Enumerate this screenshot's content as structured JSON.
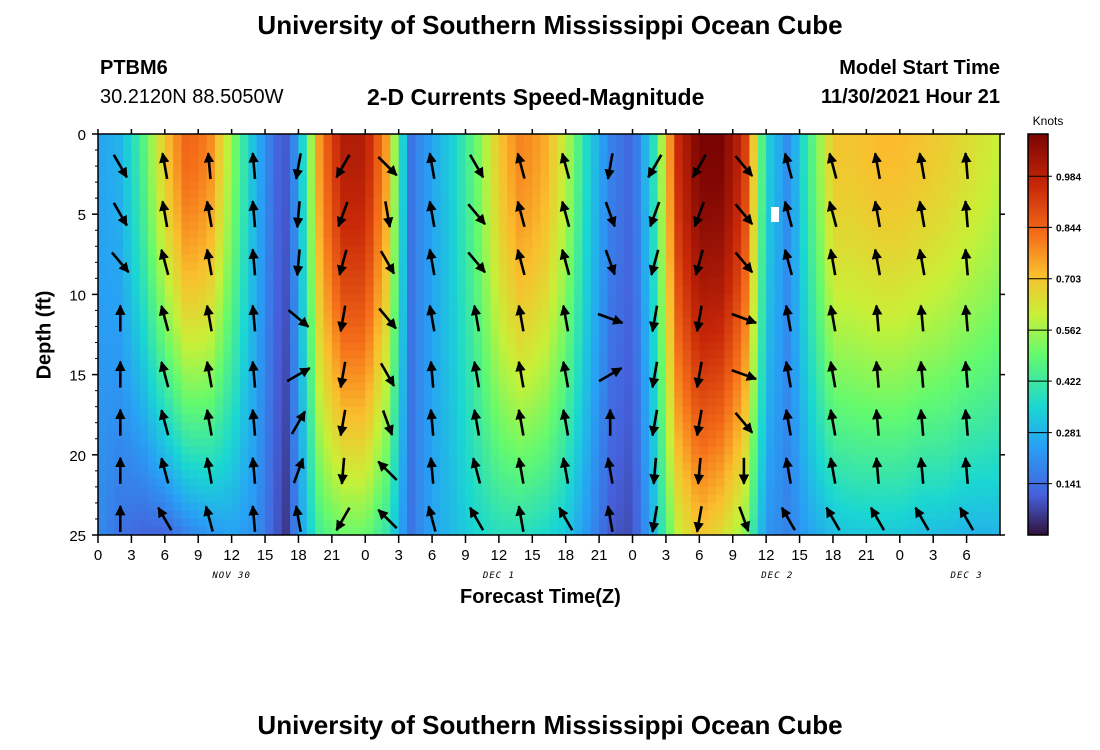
{
  "page": {
    "title_top": "University of Southern Mississippi Ocean Cube",
    "title_bottom": "University of Southern Mississippi Ocean Cube",
    "station_id": "PTBM6",
    "station_coords": "30.2120N  88.5050W",
    "plot_title": "2-D Currents Speed-Magnitude",
    "model_start_label": "Model Start Time",
    "model_start_value": "11/30/2021 Hour 21"
  },
  "chart_data": {
    "type": "heatmap",
    "title": "2-D Currents Speed-Magnitude",
    "xlabel": "Forecast Time(Z)",
    "ylabel": "Depth (ft)",
    "ylim": [
      0,
      25
    ],
    "y_ticks": [
      "0",
      "5",
      "10",
      "15",
      "20",
      "25"
    ],
    "x_range_hours": [
      0,
      81
    ],
    "x_ticks": [
      "0",
      "3",
      "6",
      "9",
      "12",
      "15",
      "18",
      "21",
      "0",
      "3",
      "6",
      "9",
      "12",
      "15",
      "18",
      "21",
      "0",
      "3",
      "6",
      "9",
      "12",
      "15",
      "18",
      "21",
      "0",
      "3",
      "6"
    ],
    "date_labels": [
      {
        "label": "NOV 30",
        "hour": 12
      },
      {
        "label": "DEC 1",
        "hour": 36
      },
      {
        "label": "DEC 2",
        "hour": 61
      },
      {
        "label": "DEC 3",
        "hour": 78
      }
    ],
    "colorbar": {
      "unit": "Knots",
      "min": 0.0,
      "max": 1.1,
      "ticks": [
        "0.984",
        "0.844",
        "0.703",
        "0.562",
        "0.422",
        "0.281",
        "0.141"
      ],
      "tick_values": [
        0.984,
        0.844,
        0.703,
        0.562,
        0.422,
        0.281,
        0.141
      ]
    },
    "speed_profile": {
      "hours": [
        0,
        2,
        4,
        6,
        8,
        10,
        12,
        14,
        16,
        17,
        18,
        20,
        22,
        24,
        26,
        28,
        30,
        32,
        34,
        36,
        38,
        40,
        42,
        44,
        46,
        48,
        50,
        52,
        54,
        56,
        58,
        60,
        62,
        64,
        66,
        68,
        70,
        72,
        74,
        76,
        78,
        80,
        81
      ],
      "surface_speed": [
        0.25,
        0.28,
        0.45,
        0.7,
        0.85,
        0.8,
        0.55,
        0.3,
        0.12,
        0.1,
        0.25,
        0.8,
        1.0,
        1.0,
        0.75,
        0.15,
        0.25,
        0.35,
        0.5,
        0.7,
        0.8,
        0.75,
        0.6,
        0.35,
        0.18,
        0.12,
        0.4,
        0.95,
        1.1,
        1.1,
        0.95,
        0.35,
        0.2,
        0.45,
        0.7,
        0.7,
        0.72,
        0.72,
        0.7,
        0.68,
        0.65,
        0.62,
        0.6
      ],
      "bottom_speed": [
        0.2,
        0.15,
        0.12,
        0.12,
        0.18,
        0.22,
        0.25,
        0.22,
        0.1,
        0.05,
        0.22,
        0.45,
        0.5,
        0.5,
        0.4,
        0.15,
        0.25,
        0.3,
        0.35,
        0.38,
        0.38,
        0.36,
        0.32,
        0.22,
        0.1,
        0.08,
        0.3,
        0.6,
        0.7,
        0.65,
        0.55,
        0.22,
        0.18,
        0.25,
        0.3,
        0.32,
        0.32,
        0.32,
        0.3,
        0.3,
        0.28,
        0.28,
        0.28
      ]
    },
    "vector_hours": [
      2,
      6,
      10,
      14,
      18,
      22,
      26,
      30,
      34,
      38,
      42,
      46,
      50,
      54,
      58,
      62,
      66,
      70,
      74,
      78
    ],
    "vector_depths": [
      2,
      5,
      8,
      11.5,
      15,
      18,
      21,
      24
    ],
    "vector_angles_deg": [
      [
        150,
        150,
        140,
        0,
        0,
        0,
        0,
        0
      ],
      [
        -10,
        -10,
        -15,
        -15,
        -15,
        -15,
        -15,
        -30
      ],
      [
        -5,
        -10,
        -10,
        -10,
        -10,
        -10,
        -10,
        -15
      ],
      [
        -5,
        -5,
        -5,
        -5,
        -5,
        -5,
        -5,
        -5
      ],
      [
        -170,
        -175,
        -175,
        130,
        60,
        30,
        20,
        -10
      ],
      [
        -150,
        -160,
        -165,
        -170,
        -170,
        -170,
        -175,
        -150
      ],
      [
        135,
        170,
        150,
        140,
        150,
        160,
        -45,
        -45
      ],
      [
        -10,
        -10,
        -10,
        -10,
        -5,
        -5,
        -5,
        -15
      ],
      [
        150,
        140,
        140,
        -10,
        -10,
        -10,
        -15,
        -30
      ],
      [
        -15,
        -15,
        -15,
        -10,
        -10,
        -10,
        -10,
        -10
      ],
      [
        -15,
        -15,
        -15,
        -10,
        -10,
        -10,
        -10,
        -30
      ],
      [
        -170,
        160,
        160,
        110,
        60,
        0,
        -10,
        -10
      ],
      [
        -150,
        -160,
        -165,
        -170,
        -170,
        -170,
        -175,
        -170
      ],
      [
        -150,
        -160,
        -165,
        -170,
        -170,
        -170,
        -175,
        -170
      ],
      [
        140,
        140,
        140,
        110,
        110,
        140,
        180,
        160
      ],
      [
        -15,
        -15,
        -15,
        -10,
        -10,
        -10,
        -10,
        -30
      ],
      [
        -15,
        -15,
        -10,
        -10,
        -10,
        -10,
        -10,
        -30
      ],
      [
        -10,
        -10,
        -10,
        -5,
        -5,
        -5,
        -5,
        -30
      ],
      [
        -10,
        -10,
        -10,
        -5,
        -5,
        -5,
        -5,
        -30
      ],
      [
        -5,
        -5,
        -5,
        -5,
        -5,
        -5,
        -5,
        -30
      ]
    ]
  },
  "colors": {
    "frame": "#000000",
    "vector": "#000000",
    "marker": "#ffffff"
  }
}
